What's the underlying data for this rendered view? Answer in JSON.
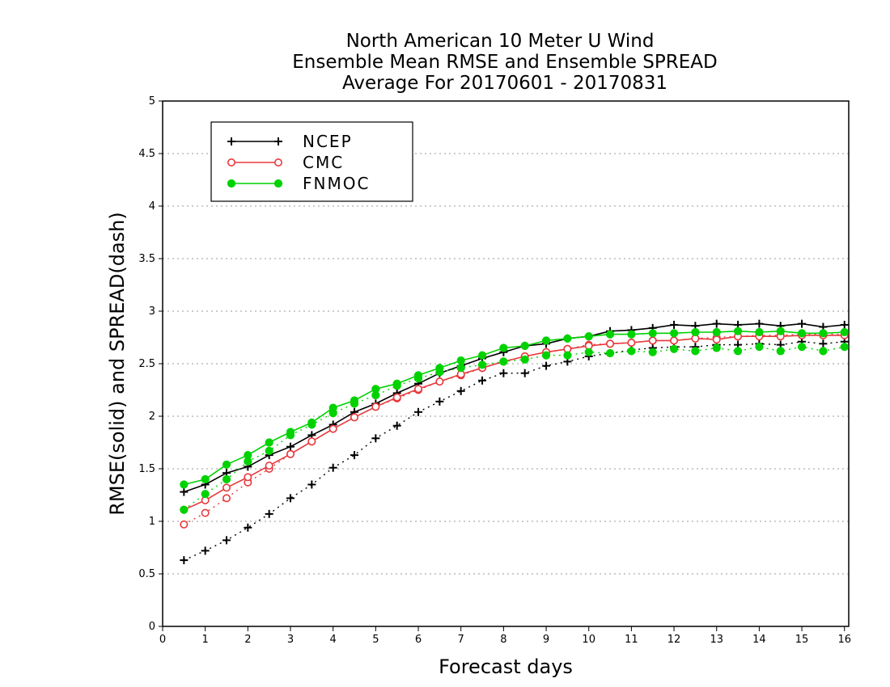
{
  "chart_data": {
    "type": "line",
    "title_lines": [
      "North American 10 Meter U Wind",
      "Ensemble Mean RMSE and Ensemble SPREAD",
      "Average For 20170601 - 20170831"
    ],
    "xlabel": "Forecast days",
    "ylabel": "RMSE(solid) and SPREAD(dash)",
    "xlim": [
      0,
      16.1
    ],
    "ylim": [
      0,
      5
    ],
    "x_ticks": [
      "0",
      "1",
      "2",
      "3",
      "4",
      "5",
      "6",
      "7",
      "8",
      "9",
      "10",
      "11",
      "12",
      "13",
      "14",
      "15",
      "16"
    ],
    "y_ticks": [
      "0",
      "0.5",
      "1",
      "1.5",
      "2",
      "2.5",
      "3",
      "3.5",
      "4",
      "4.5",
      "5"
    ],
    "grid": "horizontal dotted",
    "legend_position": "top-left",
    "x": [
      0.5,
      1,
      1.5,
      2,
      2.5,
      3,
      3.5,
      4,
      4.5,
      5,
      5.5,
      6,
      6.5,
      7,
      7.5,
      8,
      8.5,
      9,
      9.5,
      10,
      10.5,
      11,
      11.5,
      12,
      12.5,
      13,
      13.5,
      14,
      14.5,
      15,
      15.5,
      16
    ],
    "series": [
      {
        "name": "NCEP",
        "color": "#000000",
        "marker": "plus",
        "rmse": [
          1.28,
          1.35,
          1.46,
          1.52,
          1.63,
          1.71,
          1.82,
          1.92,
          2.04,
          2.12,
          2.22,
          2.31,
          2.41,
          2.48,
          2.55,
          2.61,
          2.67,
          2.69,
          2.74,
          2.76,
          2.81,
          2.82,
          2.84,
          2.87,
          2.86,
          2.88,
          2.87,
          2.88,
          2.86,
          2.88,
          2.85,
          2.87
        ],
        "spread": [
          0.63,
          0.72,
          0.82,
          0.94,
          1.07,
          1.22,
          1.35,
          1.51,
          1.63,
          1.79,
          1.91,
          2.04,
          2.14,
          2.24,
          2.34,
          2.41,
          2.41,
          2.48,
          2.52,
          2.57,
          2.6,
          2.63,
          2.65,
          2.66,
          2.66,
          2.68,
          2.68,
          2.69,
          2.68,
          2.71,
          2.69,
          2.71
        ]
      },
      {
        "name": "CMC",
        "color": "#e8393d",
        "marker": "open-circle",
        "rmse": [
          1.11,
          1.2,
          1.32,
          1.42,
          1.53,
          1.64,
          1.76,
          1.88,
          1.99,
          2.09,
          2.18,
          2.26,
          2.33,
          2.4,
          2.46,
          2.52,
          2.57,
          2.61,
          2.64,
          2.67,
          2.69,
          2.7,
          2.72,
          2.72,
          2.74,
          2.73,
          2.76,
          2.76,
          2.76,
          2.77,
          2.77,
          2.77
        ],
        "spread": [
          0.97,
          1.08,
          1.22,
          1.37,
          1.5,
          1.64,
          1.76,
          1.88,
          1.99,
          2.09,
          2.17,
          2.25,
          2.33,
          2.39,
          2.46,
          2.52,
          2.57,
          2.61,
          2.64,
          2.68,
          2.69,
          2.7,
          2.72,
          2.72,
          2.74,
          2.75,
          2.76,
          2.77,
          2.77,
          2.78,
          2.78,
          2.78
        ]
      },
      {
        "name": "FNMOC",
        "color": "#00d200",
        "marker": "filled-circle",
        "rmse": [
          1.35,
          1.4,
          1.54,
          1.63,
          1.75,
          1.85,
          1.94,
          2.08,
          2.15,
          2.26,
          2.31,
          2.39,
          2.46,
          2.53,
          2.58,
          2.65,
          2.67,
          2.72,
          2.74,
          2.76,
          2.78,
          2.78,
          2.79,
          2.79,
          2.8,
          2.8,
          2.81,
          2.8,
          2.81,
          2.79,
          2.79,
          2.8
        ],
        "spread": [
          1.11,
          1.26,
          1.4,
          1.57,
          1.67,
          1.82,
          1.92,
          2.03,
          2.12,
          2.2,
          2.29,
          2.36,
          2.42,
          2.46,
          2.49,
          2.52,
          2.54,
          2.58,
          2.58,
          2.61,
          2.6,
          2.62,
          2.61,
          2.64,
          2.62,
          2.65,
          2.62,
          2.66,
          2.62,
          2.66,
          2.62,
          2.66
        ]
      }
    ]
  }
}
